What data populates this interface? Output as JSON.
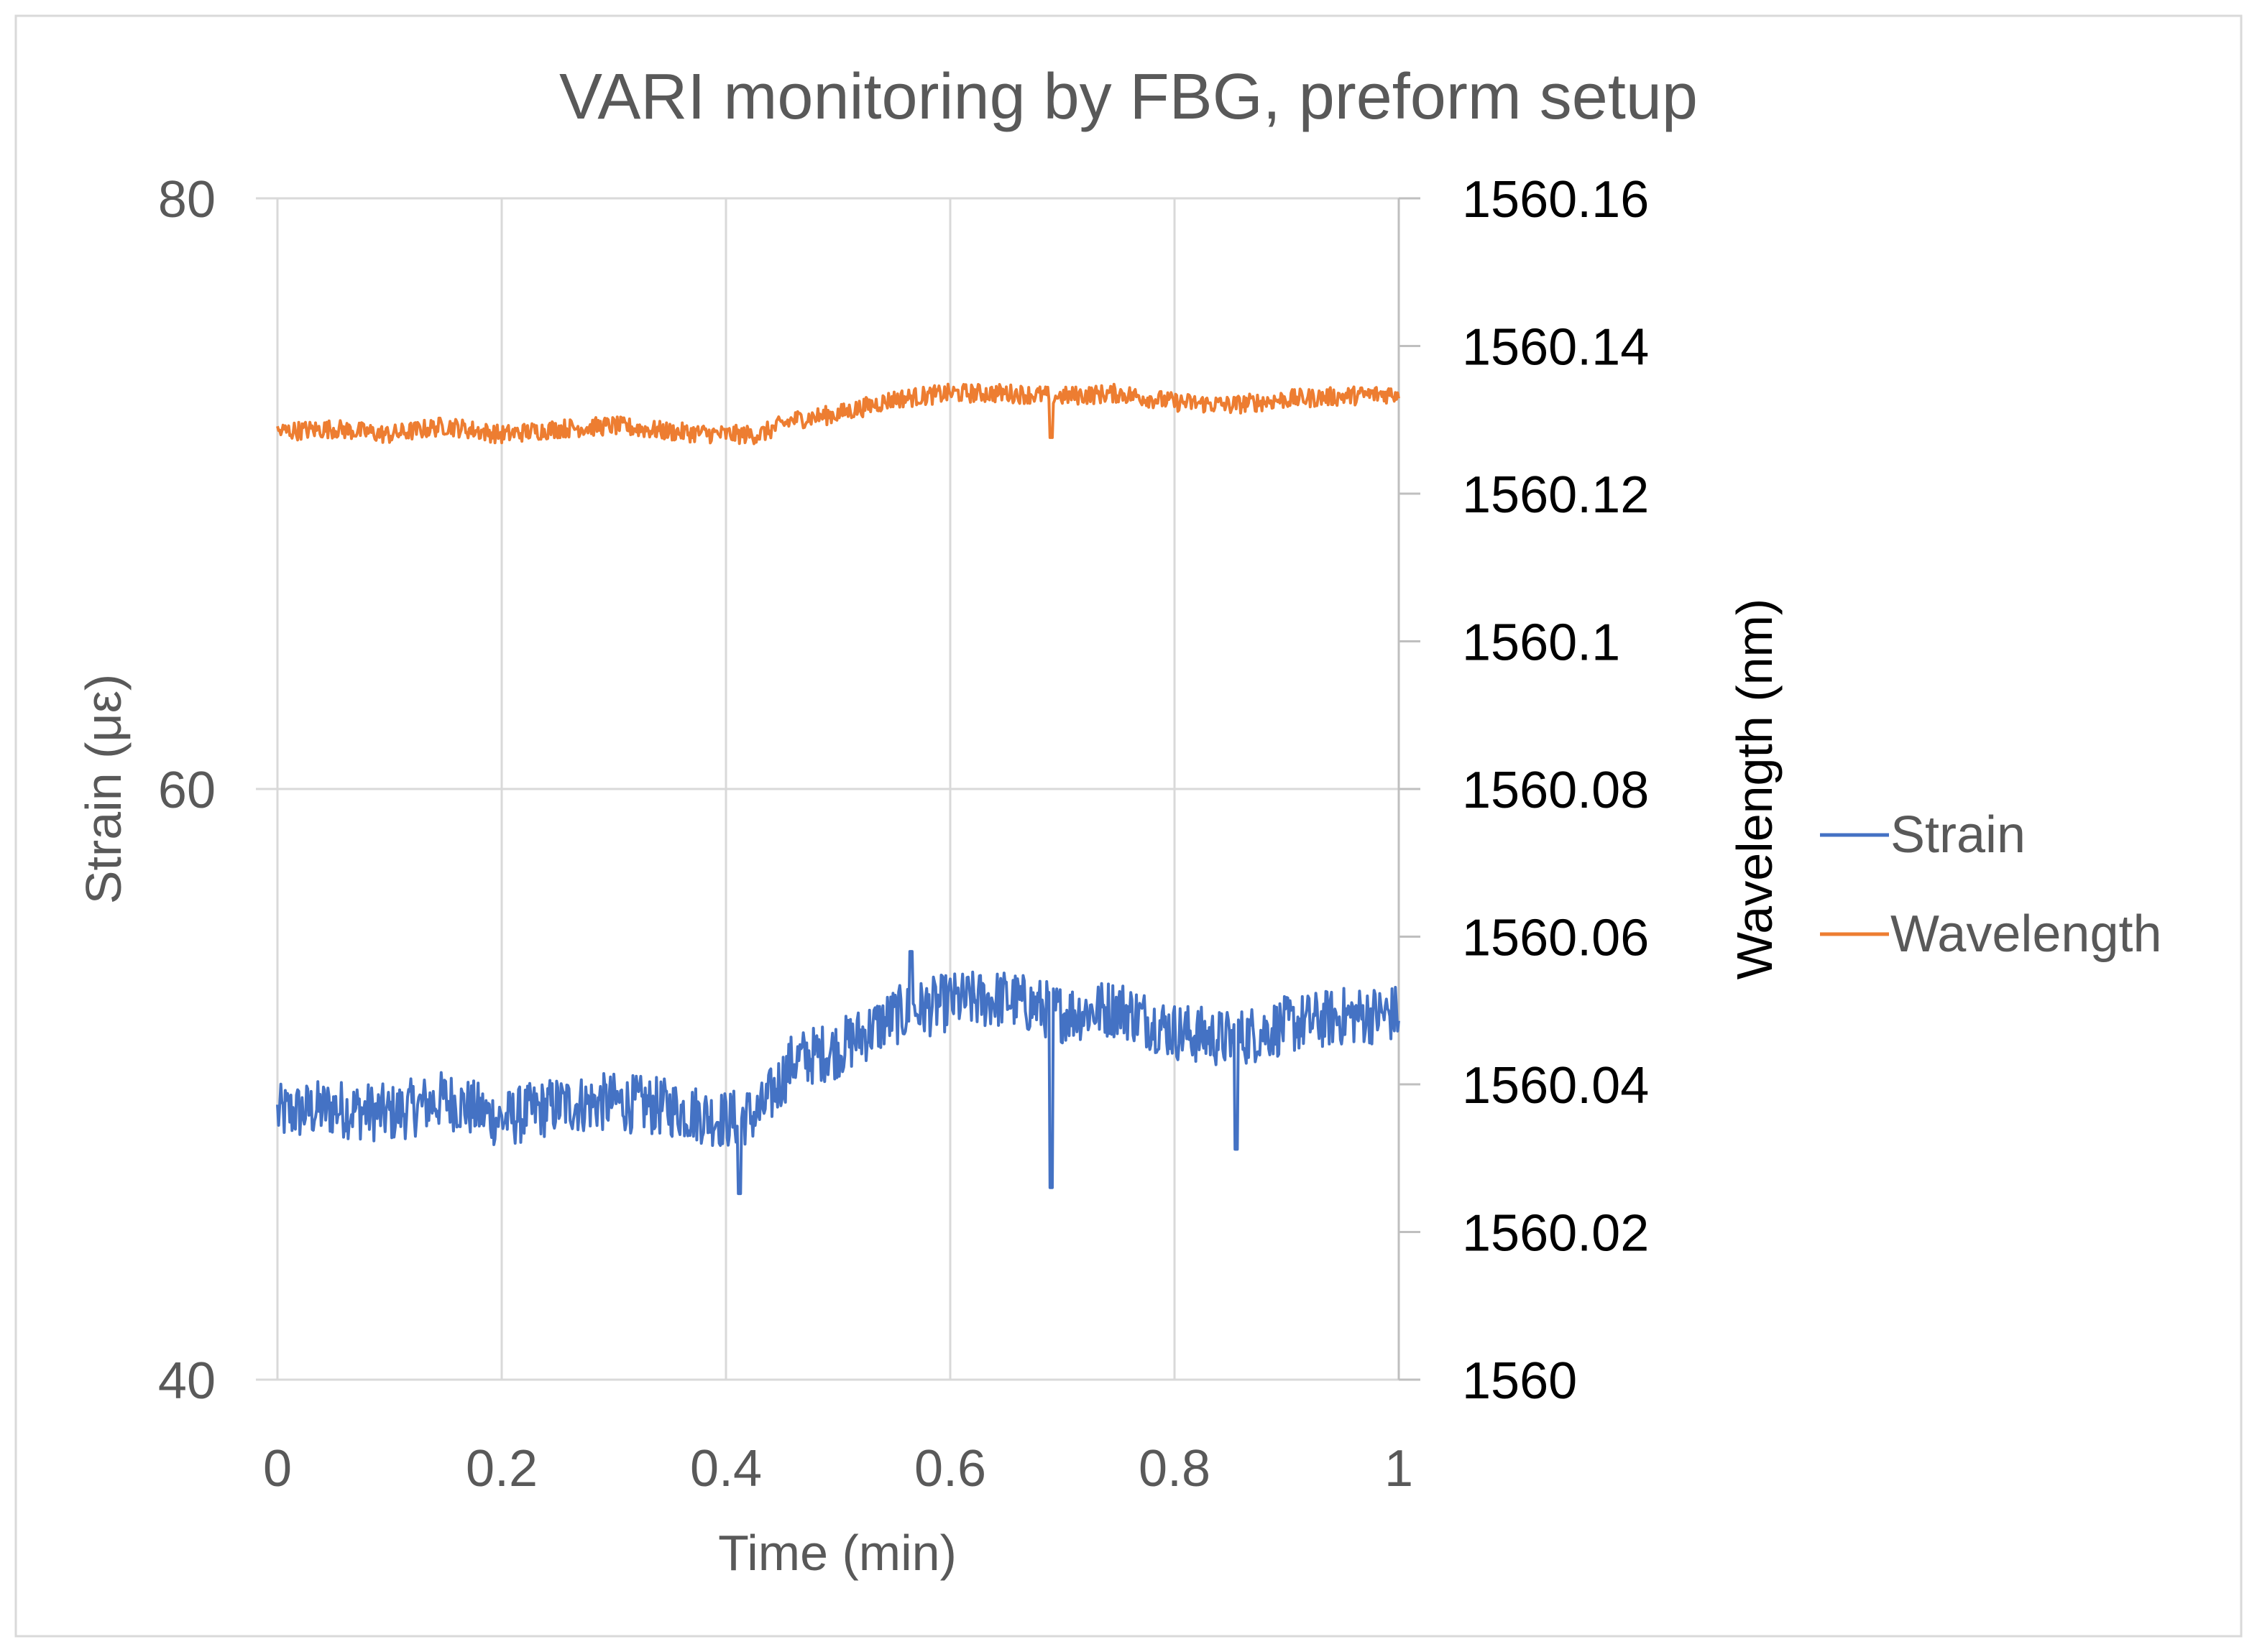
{
  "chart_data": {
    "type": "line",
    "title": "VARI monitoring by FBG, preform setup",
    "xlabel": "Time (min)",
    "ylabel": "Strain (με)",
    "y2label": "Wavelength (nm)",
    "xlim": [
      0,
      1
    ],
    "ylim": [
      40,
      80
    ],
    "y2lim": [
      1560,
      1560.16
    ],
    "x_ticks": [
      "0",
      "0.2",
      "0.4",
      "0.6",
      "0.8",
      "1"
    ],
    "y_ticks": [
      "40",
      "60",
      "80"
    ],
    "y2_ticks": [
      "1560",
      "1560.02",
      "1560.04",
      "1560.06",
      "1560.08",
      "1560.1",
      "1560.12",
      "1560.14",
      "1560.16"
    ],
    "grid": true,
    "legend_position": "right",
    "series": [
      {
        "name": "Strain",
        "axis": "left",
        "color": "#4472C4",
        "x": [
          0,
          0.05,
          0.1,
          0.15,
          0.2,
          0.25,
          0.3,
          0.35,
          0.4,
          0.43,
          0.46,
          0.5,
          0.55,
          0.6,
          0.65,
          0.7,
          0.75,
          0.8,
          0.85,
          0.9,
          0.95,
          1.0
        ],
        "values": [
          49.0,
          49.2,
          49.0,
          49.5,
          48.8,
          49.3,
          49.4,
          49.2,
          48.8,
          49.0,
          50.8,
          51.2,
          52.3,
          52.8,
          52.9,
          52.4,
          52.6,
          51.8,
          51.5,
          52.0,
          52.3,
          52.4
        ],
        "spikes": [
          {
            "x": 0.69,
            "value": 46.5
          },
          {
            "x": 0.855,
            "value": 47.8
          },
          {
            "x": 0.412,
            "value": 46.3
          },
          {
            "x": 0.565,
            "value": 54.5
          }
        ]
      },
      {
        "name": "Wavelength",
        "axis": "left",
        "color": "#ED7D31",
        "x": [
          0,
          0.05,
          0.1,
          0.15,
          0.2,
          0.25,
          0.3,
          0.35,
          0.4,
          0.43,
          0.46,
          0.5,
          0.55,
          0.6,
          0.65,
          0.7,
          0.75,
          0.8,
          0.85,
          0.9,
          0.95,
          1.0
        ],
        "values": [
          72.1,
          72.2,
          72.0,
          72.3,
          72.0,
          72.2,
          72.3,
          72.1,
          72.0,
          72.0,
          72.5,
          72.7,
          73.2,
          73.4,
          73.4,
          73.3,
          73.4,
          73.1,
          73.0,
          73.2,
          73.3,
          73.4
        ],
        "spikes": [
          {
            "x": 0.69,
            "value": 71.9
          }
        ]
      }
    ]
  }
}
